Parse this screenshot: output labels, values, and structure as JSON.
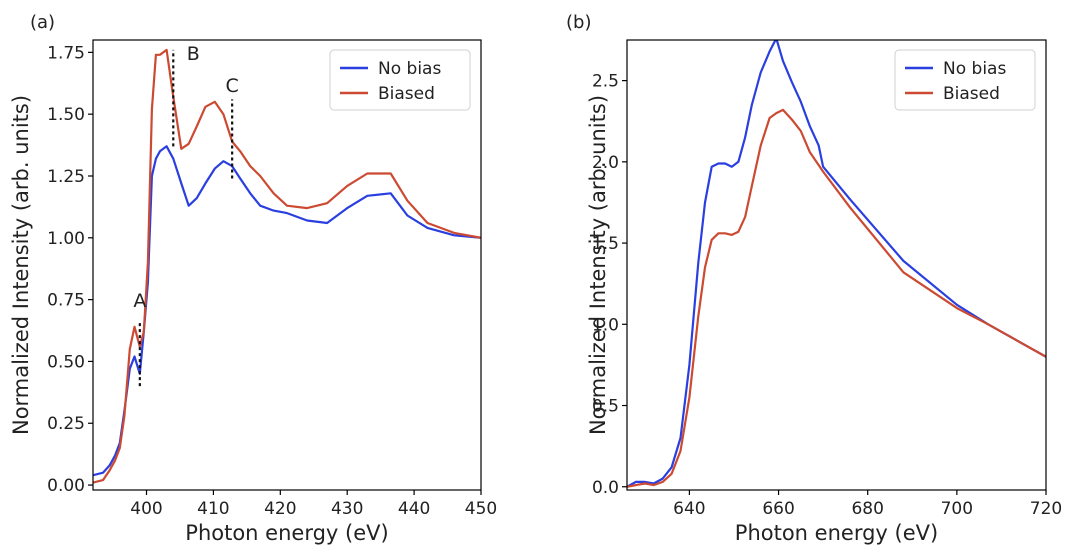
{
  "colors": {
    "no_bias": "#2a3fe0",
    "biased": "#cc4a32"
  },
  "chart_data": [
    {
      "panel": "(a)",
      "type": "line",
      "xlabel": "Photon energy (eV)",
      "ylabel": "Normalized Intensity (arb. units)",
      "xlim": [
        392,
        450
      ],
      "ylim": [
        -0.02,
        1.8
      ],
      "xticks": [
        400,
        410,
        420,
        430,
        440,
        450
      ],
      "xtick_labels": [
        "400",
        "410",
        "420",
        "430",
        "440",
        "450"
      ],
      "yticks": [
        0,
        0.25,
        0.5,
        0.75,
        1.0,
        1.25,
        1.5,
        1.75
      ],
      "ytick_labels": [
        "0.00",
        "0.25",
        "0.50",
        "0.75",
        "1.00",
        "1.25",
        "1.50",
        "1.75"
      ],
      "grid": false,
      "legend": "top-right",
      "series": [
        {
          "name": "No bias",
          "color_key": "no_bias",
          "x": [
            392,
            393.5,
            394.5,
            395.3,
            396,
            396.7,
            397.5,
            398.2,
            399,
            399.6,
            400.2,
            400.8,
            401.4,
            402,
            403,
            404,
            405.2,
            406.3,
            407.5,
            408.8,
            410.2,
            411.5,
            412.8,
            414,
            415.5,
            417,
            419,
            421,
            424,
            427,
            430,
            433,
            436.5,
            439,
            442,
            446,
            450
          ],
          "y": [
            0.04,
            0.05,
            0.08,
            0.12,
            0.17,
            0.3,
            0.47,
            0.52,
            0.45,
            0.62,
            0.82,
            1.25,
            1.32,
            1.35,
            1.37,
            1.32,
            1.22,
            1.13,
            1.16,
            1.22,
            1.28,
            1.31,
            1.29,
            1.24,
            1.18,
            1.13,
            1.11,
            1.1,
            1.07,
            1.06,
            1.12,
            1.17,
            1.18,
            1.09,
            1.04,
            1.01,
            1.0
          ]
        },
        {
          "name": "Biased",
          "color_key": "biased",
          "x": [
            392,
            393.5,
            394.5,
            395.3,
            396,
            396.7,
            397.5,
            398.2,
            399,
            399.6,
            400.2,
            400.8,
            401.4,
            402,
            403,
            404,
            405.2,
            406.3,
            407.5,
            408.8,
            410.2,
            411.5,
            412.8,
            414,
            415.5,
            417,
            419,
            421,
            424,
            427,
            430,
            433,
            436.5,
            439,
            442,
            446,
            450
          ],
          "y": [
            0.01,
            0.02,
            0.06,
            0.1,
            0.15,
            0.28,
            0.55,
            0.64,
            0.56,
            0.62,
            0.9,
            1.52,
            1.74,
            1.74,
            1.76,
            1.57,
            1.36,
            1.38,
            1.45,
            1.53,
            1.55,
            1.5,
            1.39,
            1.35,
            1.29,
            1.25,
            1.18,
            1.13,
            1.12,
            1.14,
            1.21,
            1.26,
            1.26,
            1.15,
            1.06,
            1.02,
            1.0
          ]
        }
      ],
      "annotations": [
        {
          "label": "A",
          "x": 399,
          "y_from": 0.4,
          "y_to": 0.66,
          "label_y": 0.72
        },
        {
          "label": "B",
          "x": 404,
          "y_from": 1.37,
          "y_to": 1.76,
          "label_y": 1.72
        },
        {
          "label": "C",
          "x": 412.8,
          "y_from": 1.24,
          "y_to": 1.56,
          "label_y": 1.59
        }
      ]
    },
    {
      "panel": "(b)",
      "type": "line",
      "xlabel": "Photon energy (eV)",
      "ylabel": "Normalized Intensity (arb. units)",
      "xlim": [
        626,
        720
      ],
      "ylim": [
        -0.02,
        2.75
      ],
      "xticks": [
        640,
        660,
        680,
        700,
        720
      ],
      "xtick_labels": [
        "640",
        "660",
        "680",
        "700",
        "720"
      ],
      "yticks": [
        0,
        0.5,
        1.0,
        1.5,
        2.0,
        2.5
      ],
      "ytick_labels": [
        "0.0",
        "0.5",
        "1.0",
        "1.5",
        "2.0",
        "2.5"
      ],
      "grid": false,
      "legend": "top-right",
      "series": [
        {
          "name": "No bias",
          "color_key": "no_bias",
          "x": [
            626,
            628,
            630,
            632,
            634,
            636,
            638,
            640,
            642,
            643.5,
            645,
            646.5,
            648,
            649.5,
            651,
            652.5,
            654,
            656,
            658,
            659.5,
            661,
            663,
            665,
            667,
            669,
            670,
            676,
            688,
            700,
            707,
            720
          ],
          "y": [
            0.0,
            0.03,
            0.03,
            0.02,
            0.05,
            0.12,
            0.3,
            0.75,
            1.38,
            1.75,
            1.97,
            1.99,
            1.99,
            1.97,
            2.0,
            2.15,
            2.35,
            2.55,
            2.68,
            2.76,
            2.62,
            2.49,
            2.37,
            2.22,
            2.1,
            1.97,
            1.77,
            1.39,
            1.12,
            1.0,
            0.8
          ]
        },
        {
          "name": "Biased",
          "color_key": "biased",
          "x": [
            626,
            628,
            630,
            632,
            634,
            636,
            638,
            640,
            642,
            643.5,
            645,
            646.5,
            648,
            649.5,
            651,
            652.5,
            654,
            656,
            658,
            659.5,
            661,
            663,
            665,
            667,
            669,
            670,
            676,
            688,
            700,
            707,
            720
          ],
          "y": [
            0.0,
            0.01,
            0.02,
            0.01,
            0.03,
            0.08,
            0.22,
            0.55,
            1.05,
            1.35,
            1.52,
            1.56,
            1.56,
            1.55,
            1.57,
            1.66,
            1.85,
            2.1,
            2.27,
            2.3,
            2.32,
            2.26,
            2.19,
            2.06,
            1.98,
            1.94,
            1.72,
            1.32,
            1.1,
            1.0,
            0.8
          ]
        }
      ],
      "annotations": []
    }
  ]
}
